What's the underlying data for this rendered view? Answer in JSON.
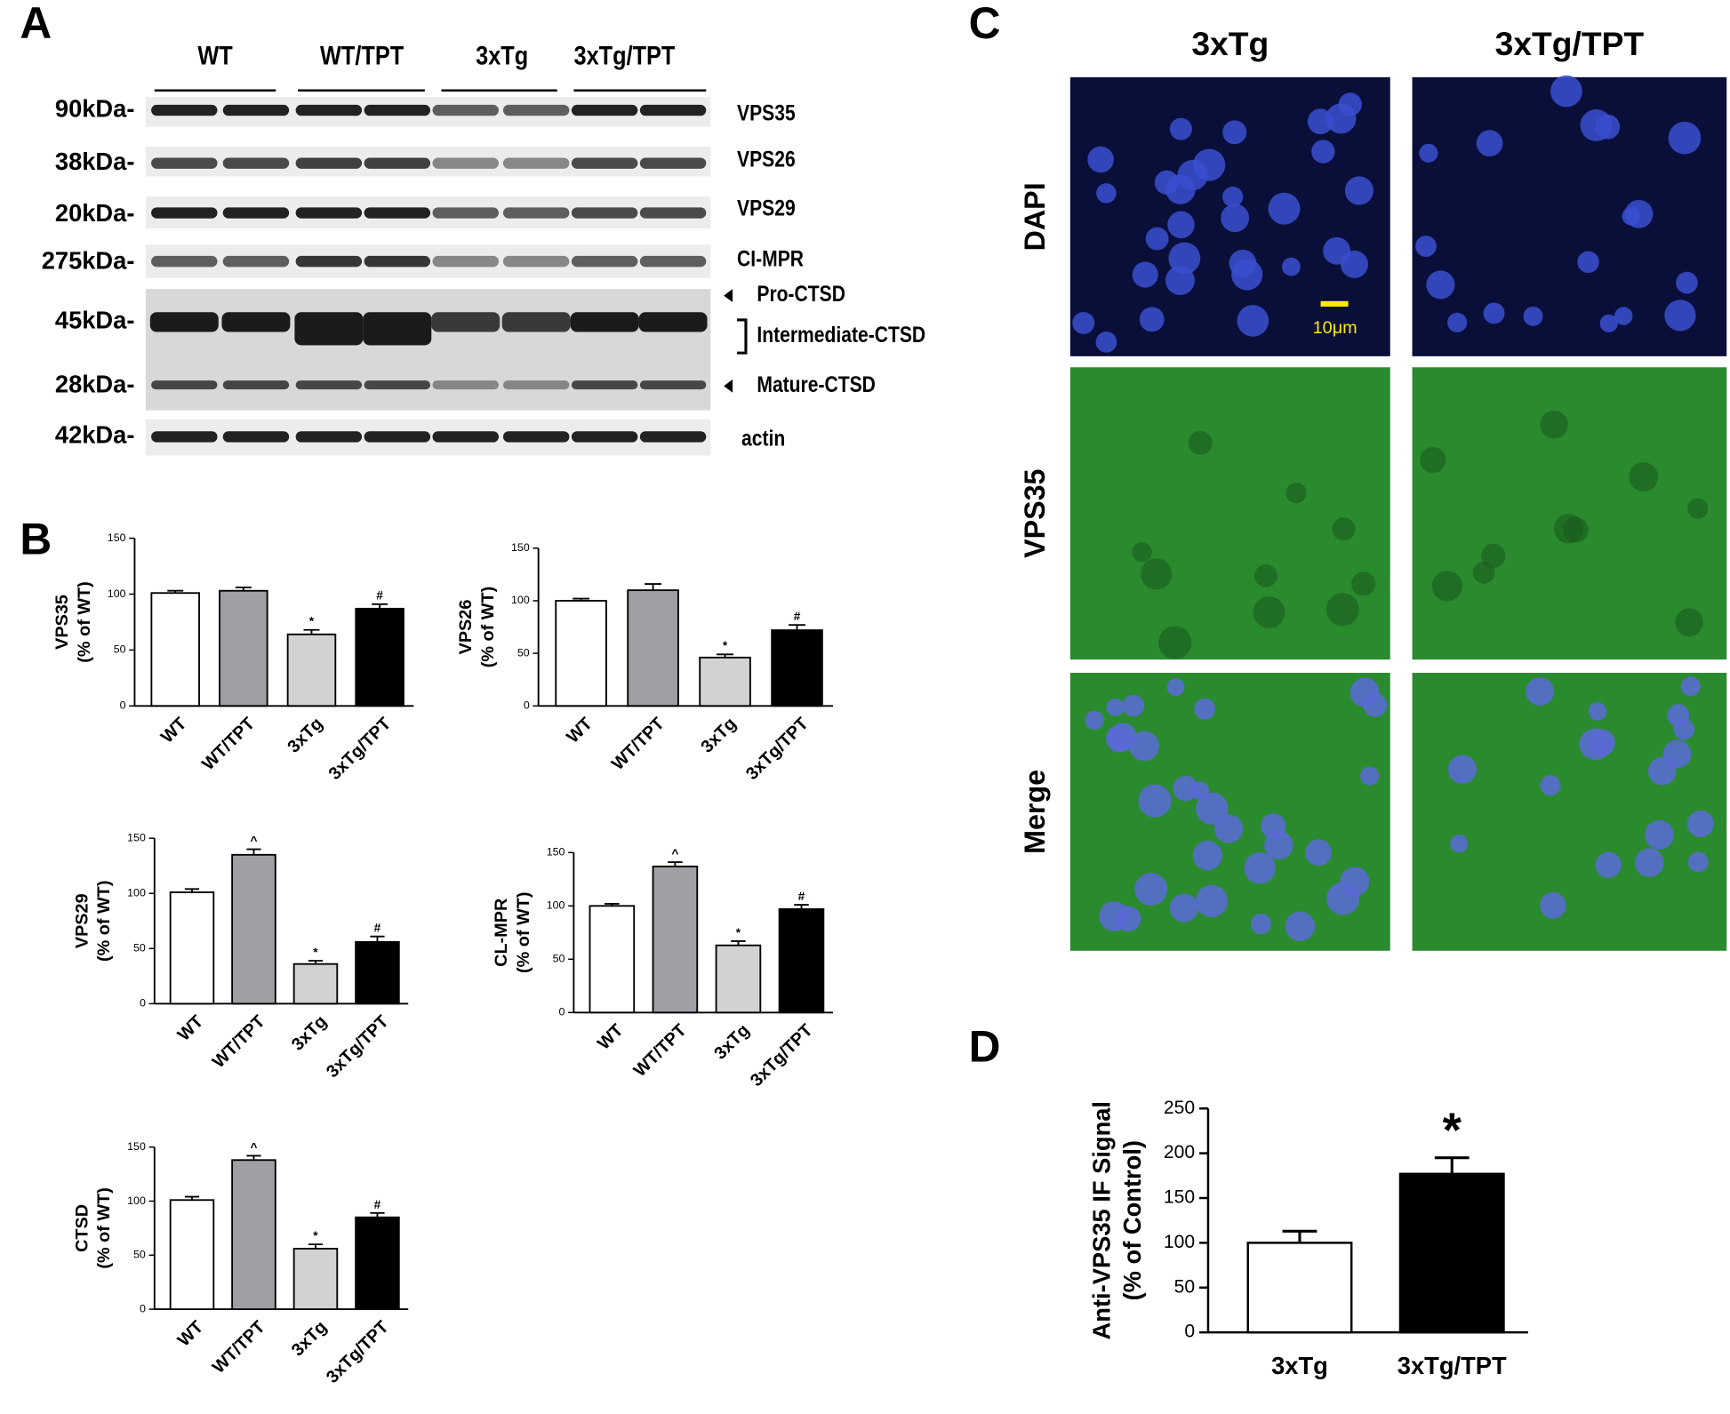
{
  "panels": {
    "a": "A",
    "b": "B",
    "c": "C",
    "d": "D"
  },
  "blot": {
    "groups": [
      "WT",
      "WT/TPT",
      "3xTg",
      "3xTg/TPT"
    ],
    "sizes": [
      "90kDa-",
      "38kDa-",
      "20kDa-",
      "275kDa-",
      "45kDa-",
      "28kDa-",
      "42kDa-"
    ],
    "proteins": [
      "VPS35",
      "VPS26",
      "VPS29",
      "CI-MPR",
      "Pro-CTSD",
      "Intermediate-CTSD",
      "Mature-CTSD",
      "actin"
    ]
  },
  "images": {
    "columns": [
      "3xTg",
      "3xTg/TPT"
    ],
    "rows": [
      "DAPI",
      "VPS35",
      "Merge"
    ],
    "scale_bar": "10μm"
  },
  "chart_data": [
    {
      "type": "bar",
      "y_label": [
        "VPS35",
        "(% of WT)"
      ],
      "categories": [
        "WT",
        "WT/TPT",
        "3xTg",
        "3xTg/TPT"
      ],
      "values": [
        101,
        103,
        64,
        87
      ],
      "errors": [
        2,
        3,
        4,
        4
      ],
      "markers": [
        null,
        null,
        "*",
        "#"
      ],
      "colors": [
        "#ffffff",
        "#a0a0a4",
        "#d2d2d2",
        "#000000"
      ],
      "ylim": [
        0,
        150
      ],
      "yticks": [
        0,
        50,
        100,
        150
      ]
    },
    {
      "type": "bar",
      "y_label": [
        "VPS26",
        "(% of WT)"
      ],
      "categories": [
        "WT",
        "WT/TPT",
        "3xTg",
        "3xTg/TPT"
      ],
      "values": [
        100,
        110,
        46,
        72
      ],
      "errors": [
        2,
        6,
        3,
        5
      ],
      "markers": [
        null,
        null,
        "*",
        "#"
      ],
      "colors": [
        "#ffffff",
        "#a0a0a4",
        "#d2d2d2",
        "#000000"
      ],
      "ylim": [
        0,
        150
      ],
      "yticks": [
        0,
        50,
        100,
        150
      ]
    },
    {
      "type": "bar",
      "y_label": [
        "VPS29",
        "(% of WT)"
      ],
      "categories": [
        "WT",
        "WT/TPT",
        "3xTg",
        "3xTg/TPT"
      ],
      "values": [
        101,
        135,
        36,
        56
      ],
      "errors": [
        3,
        5,
        3,
        5
      ],
      "markers": [
        null,
        "^",
        "*",
        "#"
      ],
      "colors": [
        "#ffffff",
        "#a0a0a4",
        "#d2d2d2",
        "#000000"
      ],
      "ylim": [
        0,
        150
      ],
      "yticks": [
        0,
        50,
        100,
        150
      ]
    },
    {
      "type": "bar",
      "y_label": [
        "CL-MPR",
        "(% of WT)"
      ],
      "categories": [
        "WT",
        "WT/TPT",
        "3xTg",
        "3xTg/TPT"
      ],
      "values": [
        100,
        137,
        63,
        97
      ],
      "errors": [
        2,
        4,
        4,
        4
      ],
      "markers": [
        null,
        "^",
        "*",
        "#"
      ],
      "colors": [
        "#ffffff",
        "#a0a0a4",
        "#d2d2d2",
        "#000000"
      ],
      "ylim": [
        0,
        150
      ],
      "yticks": [
        0,
        50,
        100,
        150
      ]
    },
    {
      "type": "bar",
      "y_label": [
        "CTSD",
        "(% of WT)"
      ],
      "categories": [
        "WT",
        "WT/TPT",
        "3xTg",
        "3xTg/TPT"
      ],
      "values": [
        101,
        138,
        56,
        85
      ],
      "errors": [
        3,
        4,
        4,
        4
      ],
      "markers": [
        null,
        "^",
        "*",
        "#"
      ],
      "colors": [
        "#ffffff",
        "#a0a0a4",
        "#d2d2d2",
        "#000000"
      ],
      "ylim": [
        0,
        150
      ],
      "yticks": [
        0,
        50,
        100,
        150
      ]
    },
    {
      "type": "bar",
      "y_label": [
        "Anti-VPS35 IF Signal",
        "(% of Control)"
      ],
      "categories": [
        "3xTg",
        "3xTg/TPT"
      ],
      "values": [
        100,
        177
      ],
      "errors": [
        13,
        18
      ],
      "markers": [
        null,
        "*"
      ],
      "colors": [
        "#ffffff",
        "#000000"
      ],
      "ylim": [
        0,
        250
      ],
      "yticks": [
        0,
        50,
        100,
        150,
        200,
        250
      ]
    }
  ]
}
